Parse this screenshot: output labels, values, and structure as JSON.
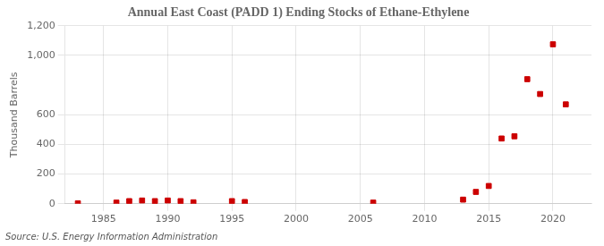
{
  "chart_data": {
    "type": "scatter",
    "title": "Annual East Coast (PADD 1) Ending Stocks of Ethane-Ethylene",
    "ylabel": "Thousand Barrels",
    "source": "Source: U.S. Energy Information Administration",
    "x": [
      1983,
      1986,
      1987,
      1988,
      1989,
      1990,
      1991,
      1992,
      1995,
      1996,
      2006,
      2013,
      2014,
      2015,
      2016,
      2017,
      2018,
      2019,
      2020,
      2021
    ],
    "values": [
      3,
      8,
      18,
      22,
      18,
      22,
      18,
      10,
      18,
      12,
      8,
      28,
      80,
      120,
      440,
      455,
      840,
      740,
      1075,
      670
    ],
    "color": "#cc0000",
    "marker": "square",
    "xlim": [
      1982,
      2023
    ],
    "xticks": [
      1985,
      1990,
      1995,
      2000,
      2005,
      2010,
      2015,
      2020
    ],
    "ylim": [
      0,
      1200
    ],
    "yticks": [
      0,
      200,
      400,
      600,
      {
        "value": 1000,
        "label": "1,000"
      },
      {
        "value": 1200,
        "label": "1,200"
      }
    ],
    "grid": true
  }
}
